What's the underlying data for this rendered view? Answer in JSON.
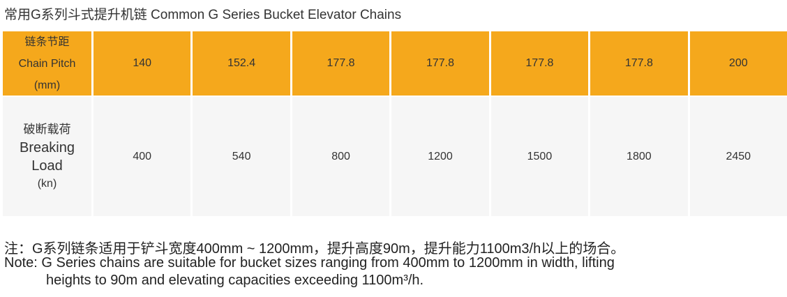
{
  "title": "常用G系列斗式提升机链 Common G Series Bucket Elevator Chains",
  "table": {
    "rows": [
      {
        "label": [
          "链条节距",
          "Chain Pitch",
          "(mm)"
        ],
        "values": [
          140,
          152.4,
          177.8,
          177.8,
          177.8,
          177.8,
          200
        ]
      },
      {
        "label": [
          "破断载荷",
          "Breaking",
          "Load",
          "(kn)"
        ],
        "values": [
          400,
          540,
          800,
          1200,
          1500,
          1800,
          2450
        ]
      }
    ]
  },
  "notes": [
    "注：G系列链条适用于铲斗宽度400mm ~ 1200mm，提升高度90m，提升能力1100m3/h以上的场合。",
    "Note: G Series chains are suitable for bucket sizes ranging from 400mm to 1200mm in width, lifting",
    "heights to 90m and elevating capacities exceeding 1100m³/h."
  ]
}
